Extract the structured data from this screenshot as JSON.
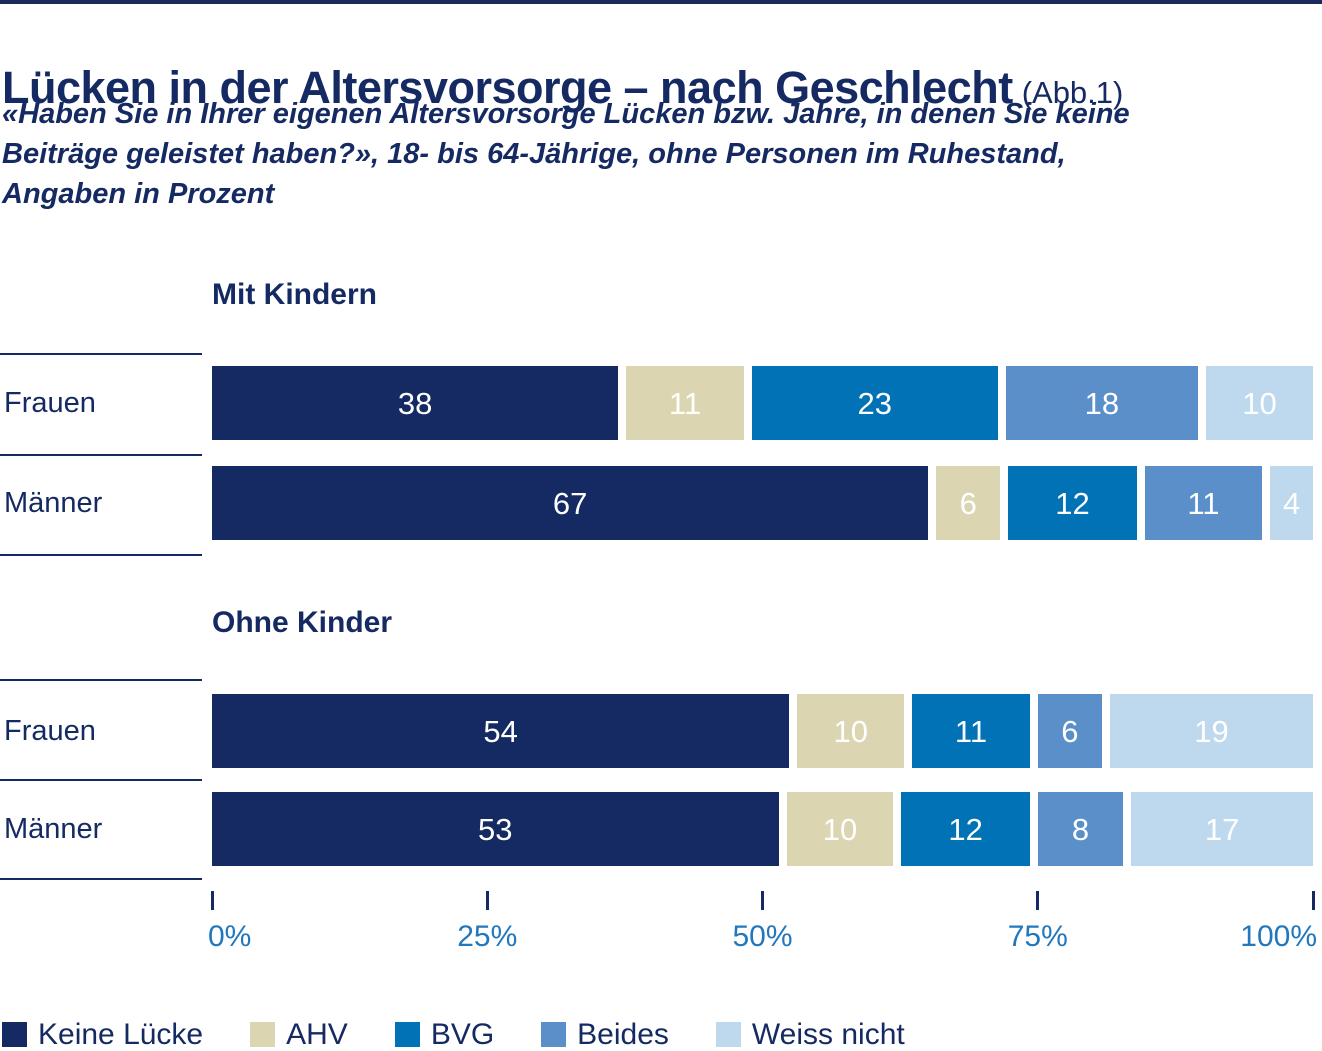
{
  "page": {
    "title": "Lücken in der Altersvorsorge – nach Geschlecht",
    "title_suffix": "(Abb.1)",
    "subtitle_lines": [
      "«Haben Sie in Ihrer eigenen Altersvorsorge Lücken bzw. Jahre, in denen Sie keine",
      "Beiträge geleistet haben?», 18- bis 64-Jährige, ohne Personen im Ruhestand,",
      "Angaben in Prozent"
    ]
  },
  "colors": {
    "navy": "#152A62",
    "beige": "#DCD5B2",
    "blue": "#0072B5",
    "steel_blue": "#5B8FC9",
    "light_blue": "#BED8EE",
    "axis_label": "#2178BE",
    "top_rule": "#1B2A5B",
    "background": "#FFFFFF",
    "value_text": "#FFFFFF"
  },
  "chart_data": {
    "type": "bar",
    "orientation": "horizontal",
    "stacked": true,
    "unit": "percent",
    "title": "Lücken in der Altersvorsorge – nach Geschlecht (Abb.1)",
    "xlabel": "",
    "ylabel": "",
    "axis": {
      "range": [
        0,
        100
      ],
      "ticks": [
        "0%",
        "25%",
        "50%",
        "75%",
        "100%"
      ],
      "tick_values": [
        0,
        25,
        50,
        75,
        100
      ],
      "grid": false
    },
    "legend_position": "bottom",
    "legend": [
      {
        "label": "Keine Lücke",
        "color": "#152A62"
      },
      {
        "label": "AHV",
        "color": "#DCD5B2"
      },
      {
        "label": "BVG",
        "color": "#0072B5"
      },
      {
        "label": "Beides",
        "color": "#5B8FC9"
      },
      {
        "label": "Weiss nicht",
        "color": "#BED8EE"
      }
    ],
    "groups": [
      {
        "label": "Mit Kindern",
        "rows": [
          {
            "label": "Frauen",
            "values": [
              38,
              11,
              23,
              18,
              10
            ]
          },
          {
            "label": "Männer",
            "values": [
              67,
              6,
              12,
              11,
              4
            ]
          }
        ]
      },
      {
        "label": "Ohne Kinder",
        "rows": [
          {
            "label": "Frauen",
            "values": [
              54,
              10,
              11,
              6,
              19
            ]
          },
          {
            "label": "Männer",
            "values": [
              53,
              10,
              12,
              8,
              17
            ]
          }
        ]
      }
    ]
  }
}
